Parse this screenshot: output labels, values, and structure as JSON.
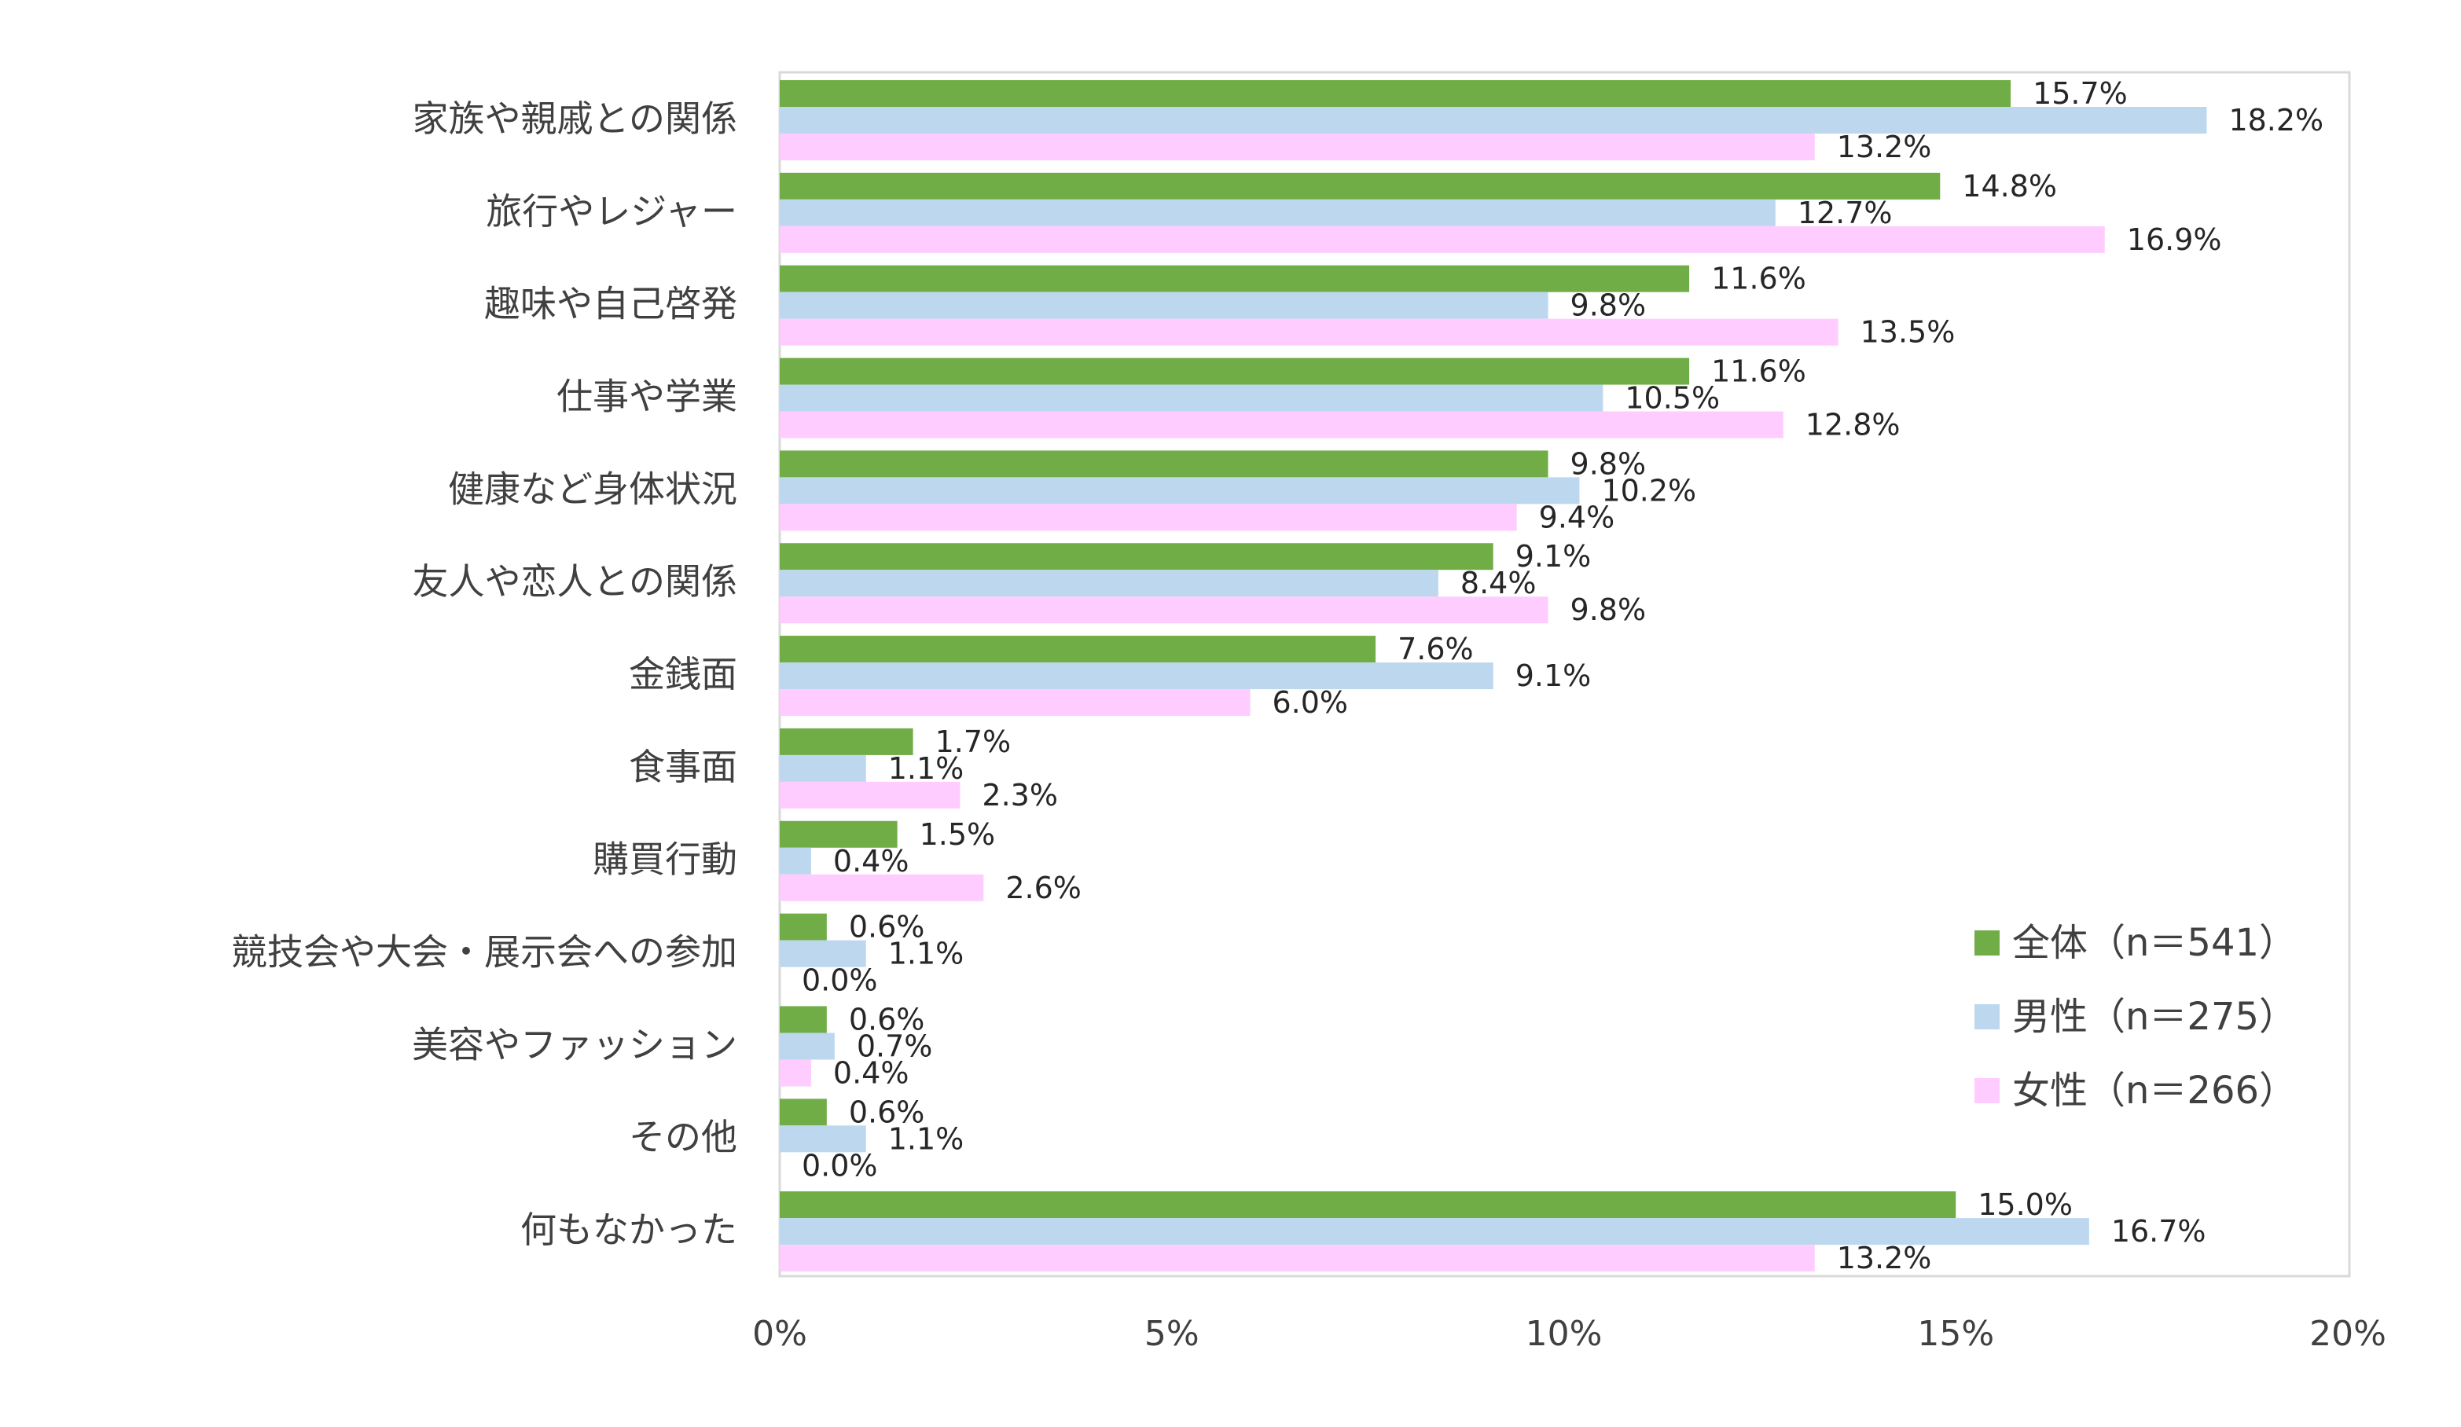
{
  "chart_data": {
    "type": "bar",
    "orientation": "horizontal",
    "categories": [
      "家族や親戚との関係",
      "旅行やレジャー",
      "趣味や自己啓発",
      "仕事や学業",
      "健康など身体状況",
      "友人や恋人との関係",
      "金銭面",
      "食事面",
      "購買行動",
      "競技会や大会・展示会への参加",
      "美容やファッション",
      "その他",
      "何もなかった"
    ],
    "series": [
      {
        "name": "全体（n＝541）",
        "color": "#70ad47",
        "values": [
          15.7,
          14.8,
          11.6,
          11.6,
          9.8,
          9.1,
          7.6,
          1.7,
          1.5,
          0.6,
          0.6,
          0.6,
          15.0
        ],
        "labels": [
          "15.7%",
          "14.8%",
          "11.6%",
          "11.6%",
          "9.8%",
          "9.1%",
          "7.6%",
          "1.7%",
          "1.5%",
          "0.6%",
          "0.6%",
          "0.6%",
          "15.0%"
        ]
      },
      {
        "name": "男性（n＝275）",
        "color": "#bdd7ee",
        "values": [
          18.2,
          12.7,
          9.8,
          10.5,
          10.2,
          8.4,
          9.1,
          1.1,
          0.4,
          1.1,
          0.7,
          1.1,
          16.7
        ],
        "labels": [
          "18.2%",
          "12.7%",
          "9.8%",
          "10.5%",
          "10.2%",
          "8.4%",
          "9.1%",
          "1.1%",
          "0.4%",
          "1.1%",
          "0.7%",
          "1.1%",
          "16.7%"
        ]
      },
      {
        "name": "女性（n＝266）",
        "color": "#ffccff",
        "values": [
          13.2,
          16.9,
          13.5,
          12.8,
          9.4,
          9.8,
          6.0,
          2.3,
          2.6,
          0.0,
          0.4,
          0.0,
          13.2
        ],
        "labels": [
          "13.2%",
          "16.9%",
          "13.5%",
          "12.8%",
          "9.4%",
          "9.8%",
          "6.0%",
          "2.3%",
          "2.6%",
          "0.0%",
          "0.4%",
          "0.0%",
          "13.2%"
        ]
      }
    ],
    "xlim": [
      0,
      20
    ],
    "xticks": [
      0,
      5,
      10,
      15,
      20
    ],
    "xtick_labels": [
      "0%",
      "5%",
      "10%",
      "15%",
      "20%"
    ],
    "title": "",
    "xlabel": "",
    "ylabel": "",
    "grid": false,
    "legend_position": "right-bottom-inside"
  }
}
